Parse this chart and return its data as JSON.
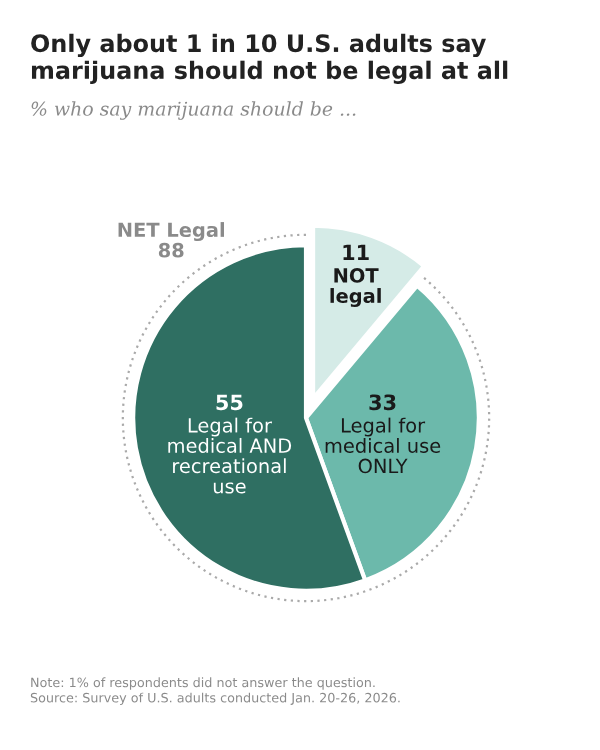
{
  "chart_data": {
    "type": "pie",
    "title": "Only about 1 in 10 U.S. adults say marijuana should not be legal at all",
    "subtitle": "% who say marijuana should be ...",
    "categories": [
      "NOT legal",
      "Legal for medical use ONLY",
      "Legal for medical AND recreational use"
    ],
    "values": [
      11,
      33,
      55
    ],
    "colors": [
      "#d5ebe7",
      "#6cb9ab",
      "#2f6f62"
    ],
    "data_labels": true,
    "annotations": [
      "NET Legal\n88",
      "Note: 1% of respondents did not answer the question.\nSource: Survey of U.S. adults conducted Jan. 20-26, 2026."
    ]
  }
}
